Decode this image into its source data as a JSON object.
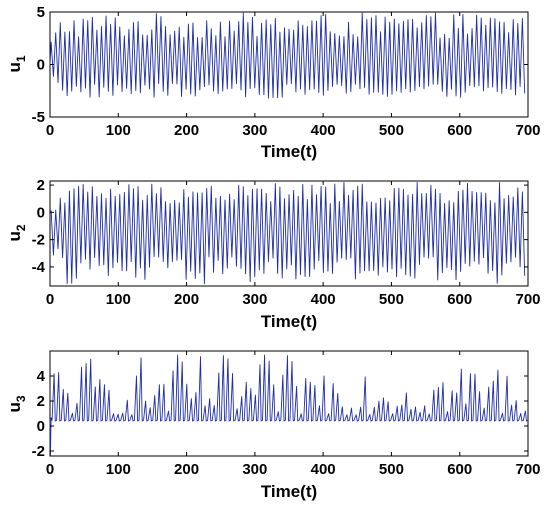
{
  "chart_data": [
    {
      "type": "line",
      "title": "",
      "xlabel": "Time(t)",
      "ylabel_main": "u",
      "ylabel_sub": "1",
      "xlim": [
        0,
        700
      ],
      "ylim": [
        -5,
        5
      ],
      "xticks": [
        "0",
        "100",
        "200",
        "300",
        "400",
        "500",
        "600",
        "700"
      ],
      "xtick_values": [
        0,
        100,
        200,
        300,
        400,
        500,
        600,
        700
      ],
      "yticks": [
        "-5",
        "0",
        "5"
      ],
      "ytick_values": [
        -5,
        0,
        5
      ],
      "grid": false,
      "series": [
        {
          "color": "#1f2ea8",
          "signal": {
            "kind": "oscillation",
            "start": 0,
            "period": 6.7,
            "upper_range": [
              2.5,
              4.9
            ],
            "lower_range": [
              -3.2,
              -1.8
            ],
            "transient_end": 20,
            "transient_start_value": 0
          }
        }
      ]
    },
    {
      "type": "line",
      "title": "",
      "xlabel": "Time(t)",
      "ylabel_main": "u",
      "ylabel_sub": "2",
      "xlim": [
        0,
        700
      ],
      "ylim": [
        -5.4,
        2.3
      ],
      "xticks": [
        "0",
        "100",
        "200",
        "300",
        "400",
        "500",
        "600",
        "700"
      ],
      "xtick_values": [
        0,
        100,
        200,
        300,
        400,
        500,
        600,
        700
      ],
      "yticks": [
        "-4",
        "-2",
        "0",
        "2"
      ],
      "ytick_values": [
        -4,
        -2,
        0,
        2
      ],
      "grid": false,
      "series": [
        {
          "color": "#1f2ea8",
          "signal": {
            "kind": "oscillation",
            "start": 0,
            "period": 6.7,
            "upper_range": [
              0.6,
              2.2
            ],
            "lower_range": [
              -5.3,
              -3.2
            ],
            "transient_end": 20,
            "transient_start_value": 0
          }
        }
      ]
    },
    {
      "type": "line",
      "title": "",
      "xlabel": "Time(t)",
      "ylabel_main": "u",
      "ylabel_sub": "3",
      "xlim": [
        0,
        700
      ],
      "ylim": [
        -2.4,
        6
      ],
      "xticks": [
        "0",
        "100",
        "200",
        "300",
        "400",
        "500",
        "600",
        "700"
      ],
      "xtick_values": [
        0,
        100,
        200,
        300,
        400,
        500,
        600,
        700
      ],
      "yticks": [
        "-2",
        "0",
        "2",
        "4"
      ],
      "ytick_values": [
        -2,
        0,
        2,
        4
      ],
      "grid": false,
      "series": [
        {
          "color": "#1f2ea8",
          "signal": {
            "kind": "spikes",
            "start": 0,
            "period": 6.7,
            "baseline": 0.45,
            "peak_range": [
              0.9,
              5.7
            ],
            "initial_dip": -2.3
          }
        }
      ]
    }
  ]
}
